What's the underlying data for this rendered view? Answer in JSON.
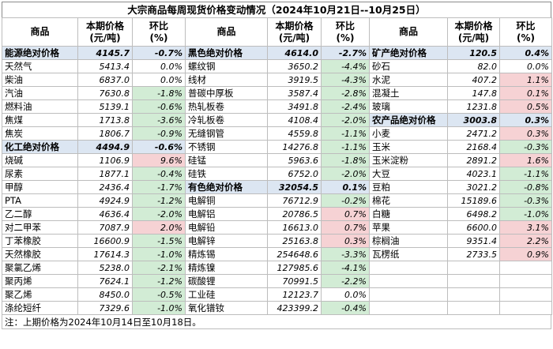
{
  "title": "大宗商品每周现货价格变动情况（2024年10月21日--10月25日）",
  "headers": [
    {
      "name": "商品",
      "price": "本期价格\n(元/吨)",
      "change": "环比\n(%)"
    },
    {
      "name": "商品",
      "price": "本期价格\n(元/吨)",
      "change": "环比\n(%)"
    },
    {
      "name": "商品",
      "price": "本期价格\n(元/吨)",
      "change": "环比\n(%)"
    }
  ],
  "rows": [
    [
      {
        "name": "能源绝对价格",
        "price": "4145.7",
        "change": "-0.7%",
        "agg": true
      },
      {
        "name": "黑色绝对价格",
        "price": "4614.0",
        "change": "-2.7%",
        "agg": true
      },
      {
        "name": "矿产绝对价格",
        "price": "120.5",
        "change": "0.4%",
        "agg": true
      }
    ],
    [
      {
        "name": "天然气",
        "price": "5413.4",
        "change": "0.0%"
      },
      {
        "name": "螺纹钢",
        "price": "3650.2",
        "change": "-4.4%"
      },
      {
        "name": "砂石",
        "price": "82.0",
        "change": "0.0%"
      }
    ],
    [
      {
        "name": "柴油",
        "price": "6837.0",
        "change": "0.0%"
      },
      {
        "name": "线材",
        "price": "3919.5",
        "change": "-4.3%"
      },
      {
        "name": "水泥",
        "price": "407.2",
        "change": "1.1%"
      }
    ],
    [
      {
        "name": "汽油",
        "price": "7630.8",
        "change": "-1.8%"
      },
      {
        "name": "普碳中厚板",
        "price": "3587.4",
        "change": "-2.8%"
      },
      {
        "name": "混凝土",
        "price": "147.8",
        "change": "0.1%"
      }
    ],
    [
      {
        "name": "燃料油",
        "price": "5139.1",
        "change": "-0.6%"
      },
      {
        "name": "热轧板卷",
        "price": "3491.8",
        "change": "-2.4%"
      },
      {
        "name": "玻璃",
        "price": "1231.8",
        "change": "0.5%"
      }
    ],
    [
      {
        "name": "焦煤",
        "price": "1713.8",
        "change": "-3.6%"
      },
      {
        "name": "冷轧板卷",
        "price": "4108.4",
        "change": "-2.0%"
      },
      {
        "name": "农产品绝对价格",
        "price": "3003.8",
        "change": "0.3%",
        "agg": true
      }
    ],
    [
      {
        "name": "焦炭",
        "price": "1806.7",
        "change": "-0.9%"
      },
      {
        "name": "无缝钢管",
        "price": "4559.8",
        "change": "-1.1%"
      },
      {
        "name": "小麦",
        "price": "2471.2",
        "change": "0.3%"
      }
    ],
    [
      {
        "name": "化工绝对价格",
        "price": "4494.9",
        "change": "-0.6%",
        "agg": true
      },
      {
        "name": "不锈钢",
        "price": "14276.8",
        "change": "-1.1%"
      },
      {
        "name": "玉米",
        "price": "2168.4",
        "change": "-0.3%"
      }
    ],
    [
      {
        "name": "烧碱",
        "price": "1106.9",
        "change": "9.6%"
      },
      {
        "name": "硅锰",
        "price": "5963.6",
        "change": "-1.8%"
      },
      {
        "name": "玉米淀粉",
        "price": "2891.2",
        "change": "1.6%"
      }
    ],
    [
      {
        "name": "尿素",
        "price": "1877.1",
        "change": "-0.4%"
      },
      {
        "name": "硅铁",
        "price": "6752.0",
        "change": "-2.0%"
      },
      {
        "name": "大豆",
        "price": "4023.1",
        "change": "-1.1%"
      }
    ],
    [
      {
        "name": "甲醇",
        "price": "2436.4",
        "change": "-1.7%"
      },
      {
        "name": "有色绝对价格",
        "price": "32054.5",
        "change": "0.1%",
        "agg": true
      },
      {
        "name": "豆粕",
        "price": "3021.2",
        "change": "-0.8%"
      }
    ],
    [
      {
        "name": "PTA",
        "price": "4924.9",
        "change": "-1.2%"
      },
      {
        "name": "电解铜",
        "price": "76712.9",
        "change": "-0.2%"
      },
      {
        "name": "棉花",
        "price": "15189.6",
        "change": "-0.3%"
      }
    ],
    [
      {
        "name": "乙二醇",
        "price": "4636.4",
        "change": "-2.0%"
      },
      {
        "name": "电解铝",
        "price": "20786.5",
        "change": "0.7%"
      },
      {
        "name": "白糖",
        "price": "6498.2",
        "change": "-1.0%"
      }
    ],
    [
      {
        "name": "对二甲苯",
        "price": "7087.9",
        "change": "2.0%"
      },
      {
        "name": "电解铅",
        "price": "16613.0",
        "change": "0.7%"
      },
      {
        "name": "苹果",
        "price": "6600.0",
        "change": "3.1%"
      }
    ],
    [
      {
        "name": "丁苯橡胶",
        "price": "16600.9",
        "change": "-1.5%"
      },
      {
        "name": "电解锌",
        "price": "25163.8",
        "change": "0.3%"
      },
      {
        "name": "棕榈油",
        "price": "9351.4",
        "change": "2.2%"
      }
    ],
    [
      {
        "name": "天然橡胶",
        "price": "17614.3",
        "change": "-1.0%"
      },
      {
        "name": "精炼锡",
        "price": "254648.6",
        "change": "-3.3%"
      },
      {
        "name": "瓦楞纸",
        "price": "2733.5",
        "change": "0.9%"
      }
    ],
    [
      {
        "name": "聚氯乙烯",
        "price": "5238.0",
        "change": "-2.1%"
      },
      {
        "name": "精炼镍",
        "price": "127985.6",
        "change": "-4.1%"
      },
      {
        "name": "",
        "price": "",
        "change": ""
      }
    ],
    [
      {
        "name": "聚丙烯",
        "price": "7624.1",
        "change": "-1.2%"
      },
      {
        "name": "碳酸锂",
        "price": "70991.5",
        "change": "-2.2%"
      },
      {
        "name": "",
        "price": "",
        "change": ""
      }
    ],
    [
      {
        "name": "聚乙烯",
        "price": "8450.0",
        "change": "-0.5%"
      },
      {
        "name": "工业硅",
        "price": "12123.7",
        "change": "0.0%"
      },
      {
        "name": "",
        "price": "",
        "change": ""
      }
    ],
    [
      {
        "name": "涤纶短纤",
        "price": "7329.6",
        "change": "-1.0%"
      },
      {
        "name": "氧化镨钕",
        "price": "423399.2",
        "change": "-0.4%"
      },
      {
        "name": "",
        "price": "",
        "change": ""
      }
    ]
  ],
  "colors": {
    "aggregate": "#dce6f2",
    "rise": "#f6d2d4",
    "fall": "#d2ecd5"
  },
  "note": "注：上期价格为2024年10月14日至10月18日。"
}
